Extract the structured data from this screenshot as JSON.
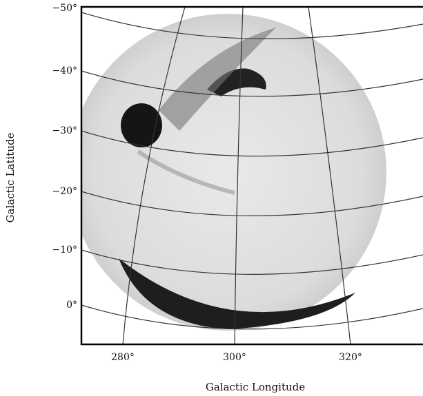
{
  "axes": {
    "x_label": "Galactic Longitude",
    "y_label": "Galactic Latitude",
    "x_ticks": [
      "280°",
      "300°",
      "320°"
    ],
    "y_ticks": [
      "−50°",
      "−40°",
      "−30°",
      "−20°",
      "−10°",
      "0°"
    ]
  }
}
